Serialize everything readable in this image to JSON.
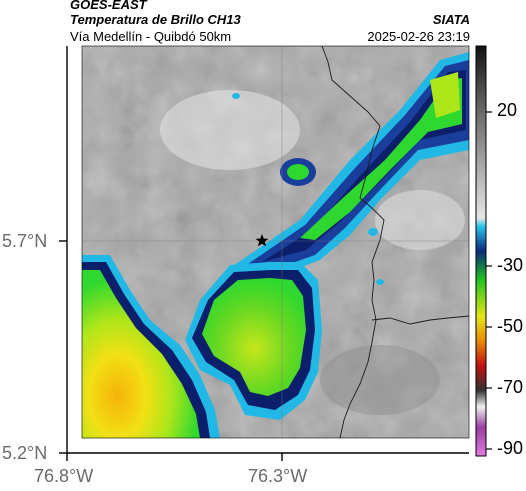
{
  "header": {
    "product": "GOES-EAST",
    "title": "Temperatura de Brillo CH13",
    "region": "Vía Medellín - Quibdó 50km",
    "organization": "SIATA",
    "timestamp": "2025-02-26 23:19"
  },
  "axes": {
    "latitude_ticks": [
      "5.7°N",
      "5.2°N"
    ],
    "longitude_ticks": [
      "76.8°W",
      "76.3°W"
    ]
  },
  "colorbar": {
    "ticks": [
      "20",
      "-30",
      "-50",
      "-70",
      "-90"
    ]
  },
  "map": {
    "marker": "star-icon",
    "colors": {
      "warm_gray_light": "#d9d9d9",
      "warm_gray_dark": "#8a8a8a",
      "cold_cyan": "#22b8e6",
      "cold_blue": "#1a3e9c",
      "cold_navy": "#0b1f6b",
      "cold_green": "#2ed82e",
      "cold_lime": "#aee61a",
      "cold_yellow": "#f2e014",
      "cold_orange": "#f5b30a"
    }
  }
}
